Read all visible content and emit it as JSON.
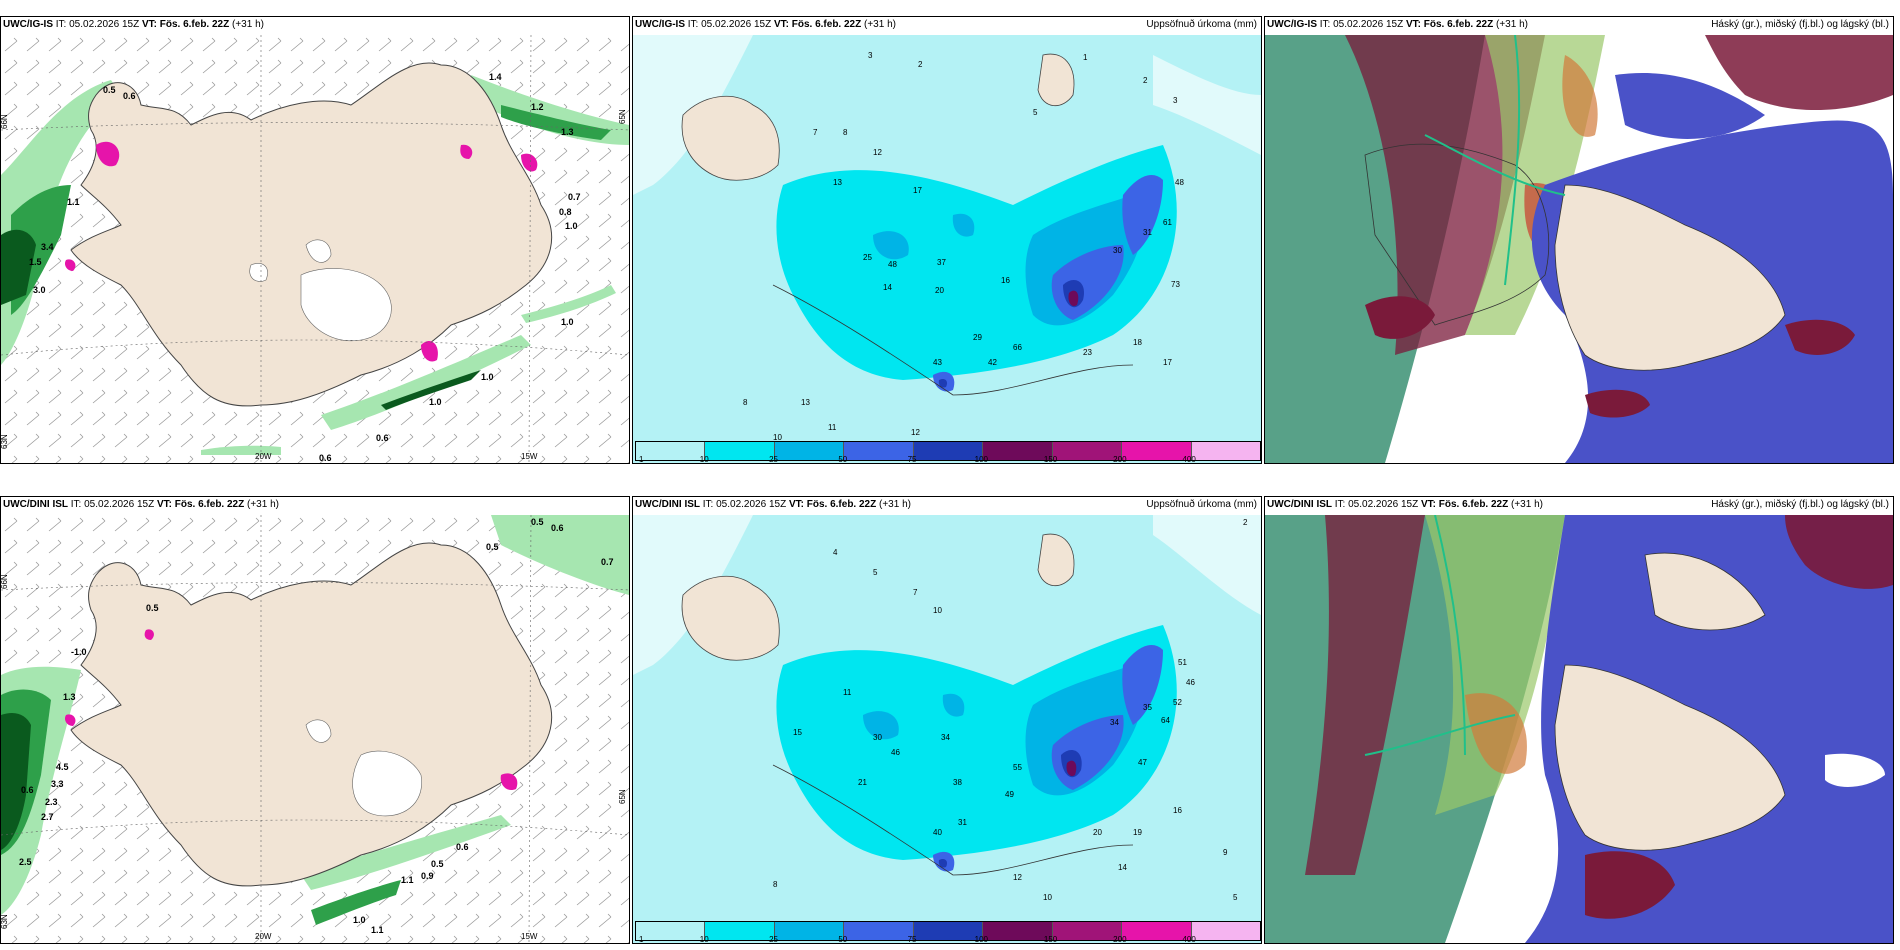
{
  "panels": [
    {
      "id": "p1",
      "model": "UWC/IG-IS",
      "it": "IT: 05.02.2026 15Z",
      "vt_label": "VT:",
      "vt": "Fös. 6.feb. 22Z",
      "lead": "(+31 h)",
      "right_title": "",
      "axis_labels": [
        "66N",
        "65N",
        "20W",
        "15W",
        "63N"
      ],
      "values": [
        "0.5",
        "0.6",
        "1.2",
        "1.3",
        "1.4",
        "1.1",
        "3.4",
        "3.0",
        "1.5",
        "1.0",
        "0.7",
        "0.8",
        "1.0",
        "0.6",
        "0.6",
        "1.0",
        "1.0"
      ]
    },
    {
      "id": "p2",
      "model": "UWC/IG-IS",
      "it": "IT: 05.02.2026 15Z",
      "vt_label": "VT:",
      "vt": "Fös. 6.feb. 22Z",
      "lead": "(+31 h)",
      "right_title": "Uppsöfnuð úrkoma (mm)",
      "values": [
        "3",
        "2",
        "1",
        "2",
        "3",
        "8",
        "12",
        "13",
        "17",
        "25",
        "20",
        "37",
        "14",
        "48",
        "16",
        "29",
        "42",
        "66",
        "43",
        "30",
        "31",
        "61",
        "73",
        "48",
        "23",
        "18",
        "17",
        "13",
        "12",
        "8",
        "10",
        "11",
        "5",
        "7"
      ],
      "legend_ticks": [
        "1",
        "10",
        "25",
        "50",
        "75",
        "100",
        "150",
        "200",
        "400"
      ]
    },
    {
      "id": "p3",
      "model": "UWC/IG-IS",
      "it": "IT: 05.02.2026 15Z",
      "vt_label": "VT:",
      "vt": "Fös. 6.feb. 22Z",
      "lead": "(+31 h)",
      "right_title": "Háský (gr.), miðský (fj.bl.) og lágský (bl.)"
    },
    {
      "id": "p4",
      "model": "UWC/DINI ISL",
      "it": "IT: 05.02.2026 15Z",
      "vt_label": "VT:",
      "vt": "Fös. 6.feb. 22Z",
      "lead": "(+31",
      "lead2": "h)",
      "right_title": "",
      "axis_labels": [
        "66N",
        "65N",
        "20W",
        "15W",
        "63N"
      ],
      "values": [
        "0.5",
        "0.6",
        "0.5",
        "0.7",
        "0.5",
        "-1.0",
        "1.3",
        "4.5",
        "3.3",
        "0.6",
        "2.3",
        "2.7",
        "2.5",
        "0.6",
        "0.5",
        "0.9",
        "1.1",
        "1.0",
        "1.1"
      ]
    },
    {
      "id": "p5",
      "model": "UWC/DINI ISL",
      "it": "IT: 05.02.2026 15Z",
      "vt_label": "VT:",
      "vt": "Fös. 6.feb. 22Z",
      "lead": "(+31 h)",
      "right_title": "Uppsöfnuð úrkoma (mm)",
      "values": [
        "2",
        "4",
        "5",
        "7",
        "10",
        "11",
        "15",
        "34",
        "30",
        "46",
        "21",
        "38",
        "55",
        "49",
        "40",
        "31",
        "34",
        "35",
        "51",
        "46",
        "64",
        "52",
        "47",
        "20",
        "19",
        "16",
        "14",
        "12",
        "9",
        "5",
        "10",
        "8"
      ],
      "legend_ticks": [
        "1",
        "10",
        "25",
        "50",
        "75",
        "100",
        "150",
        "200",
        "400"
      ]
    },
    {
      "id": "p6",
      "model": "UWC/DINI ISL",
      "it": "IT: 05.02.2026 15Z",
      "vt_label": "VT:",
      "vt": "Fös. 6.feb. 22Z",
      "lead": "(+31 h)",
      "right_title": "Háský (gr.), miðský (fj.bl.) og lágský (bl.)"
    }
  ],
  "colors": {
    "land": "#f1e4d5",
    "sea": "#ffffff",
    "precip_light": "#b4f2f5",
    "precip_cyan": "#00e6f0",
    "precip_blue": "#00b4e6",
    "precip_mid": "#3c64e6",
    "precip_dark": "#1e3cb4",
    "precip_purple": "#6e0a5a",
    "precip_magenta": "#a01478",
    "precip_pink": "#e614aa",
    "precip_lightpink": "#f5b4f0",
    "green_dark": "#0a5a1e",
    "green_mid": "#2ea04a",
    "green_light": "#a6e6b0",
    "cloud_high": "#2e8a6a",
    "cloud_mid": "#7a1a3a",
    "cloud_low": "#4a52c8"
  }
}
